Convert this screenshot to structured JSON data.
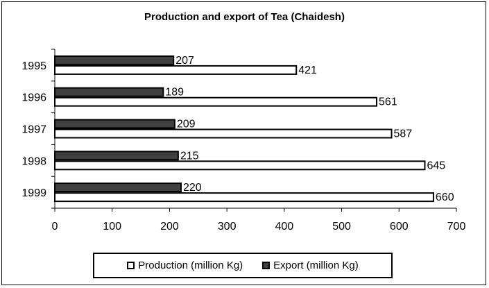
{
  "chart_data": {
    "type": "bar",
    "orientation": "horizontal",
    "title": "Production and export of Tea (Chaidesh)",
    "categories": [
      "1995",
      "1996",
      "1997",
      "1998",
      "1999"
    ],
    "series": [
      {
        "name": "Export (million Kg)",
        "values": [
          207,
          189,
          209,
          215,
          220
        ],
        "color": "#404040"
      },
      {
        "name": "Production (million Kg)",
        "values": [
          421,
          561,
          587,
          645,
          660
        ],
        "color": "#ffffff"
      }
    ],
    "xlim": [
      0,
      700
    ],
    "xticks": [
      "0",
      "100",
      "200",
      "300",
      "400",
      "500",
      "600",
      "700"
    ],
    "grid": false,
    "legend_placement": "bottom",
    "legend": [
      {
        "label": "Production (million Kg)",
        "color": "#ffffff"
      },
      {
        "label": "Export (million Kg)",
        "color": "#404040"
      }
    ]
  }
}
